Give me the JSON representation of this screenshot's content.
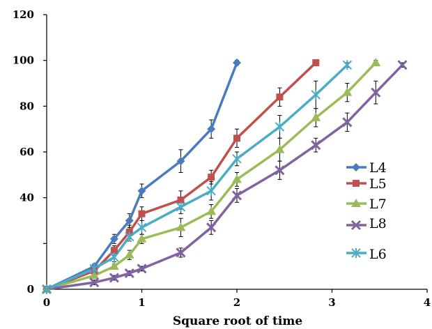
{
  "chart_data": {
    "type": "line",
    "xlabel": "Square root of time",
    "ylabel": "",
    "xlim": [
      0,
      4
    ],
    "ylim": [
      0,
      120
    ],
    "xticks": [
      0,
      1,
      2,
      3,
      4
    ],
    "yticks": [
      0,
      40,
      60,
      80,
      100,
      120
    ],
    "grid": false,
    "legend_position": "right",
    "series": [
      {
        "name": "L4",
        "color": "#4a7bbe",
        "marker": "diamond",
        "x": [
          0,
          0.5,
          0.71,
          0.87,
          1.0,
          1.41,
          1.73,
          2.0
        ],
        "y": [
          0,
          10,
          22,
          30,
          43,
          56,
          70,
          99
        ],
        "err": [
          0,
          1,
          2,
          3,
          3,
          5,
          4,
          1
        ]
      },
      {
        "name": "L5",
        "color": "#c0504d",
        "marker": "square",
        "x": [
          0,
          0.5,
          0.71,
          0.87,
          1.0,
          1.41,
          1.73,
          2.0,
          2.45,
          2.83
        ],
        "y": [
          0,
          8,
          17,
          25,
          33,
          39,
          49,
          66,
          84,
          99
        ],
        "err": [
          0,
          1,
          2,
          3,
          3,
          4,
          3,
          4,
          4,
          1
        ]
      },
      {
        "name": "L7",
        "color": "#9bbb59",
        "marker": "triangle",
        "x": [
          0,
          0.5,
          0.71,
          0.87,
          1.0,
          1.41,
          1.73,
          2.0,
          2.45,
          2.83,
          3.16,
          3.46
        ],
        "y": [
          0,
          6,
          10,
          15,
          22,
          27,
          34,
          48,
          61,
          75,
          86,
          99
        ],
        "err": [
          0,
          1,
          1,
          2,
          2,
          4,
          3,
          3,
          5,
          4,
          4,
          1
        ]
      },
      {
        "name": "L8",
        "color": "#8064a2",
        "marker": "x",
        "x": [
          0,
          0.5,
          0.71,
          0.87,
          1.0,
          1.41,
          1.73,
          2.0,
          2.45,
          2.83,
          3.16,
          3.46,
          3.74
        ],
        "y": [
          0,
          3,
          5,
          7,
          9,
          16,
          27,
          41,
          52,
          63,
          73,
          86,
          98
        ],
        "err": [
          0,
          1,
          1,
          1,
          1,
          2,
          3,
          3,
          4,
          3,
          4,
          5,
          1
        ]
      },
      {
        "name": "L6",
        "color": "#4bacc6",
        "marker": "star",
        "x": [
          0,
          0.5,
          0.71,
          0.87,
          1.0,
          1.41,
          1.73,
          2.0,
          2.45,
          2.83,
          3.16
        ],
        "y": [
          0,
          9,
          14,
          23,
          27,
          36,
          43,
          57,
          71,
          85,
          98
        ],
        "err": [
          0,
          1,
          2,
          2,
          3,
          3,
          4,
          3,
          5,
          6,
          1
        ]
      }
    ],
    "legend_order": [
      "L4",
      "L5",
      "L7",
      "L8",
      "L6"
    ]
  }
}
